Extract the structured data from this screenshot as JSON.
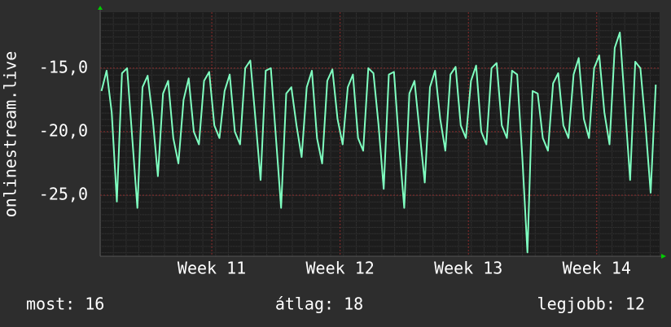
{
  "chart_data": {
    "type": "line",
    "y_label": "onlinestream.live",
    "x": [
      10.14,
      10.18,
      10.22,
      10.26,
      10.3,
      10.34,
      10.38,
      10.42,
      10.46,
      10.5,
      10.54,
      10.58,
      10.62,
      10.66,
      10.7,
      10.74,
      10.78,
      10.82,
      10.86,
      10.9,
      10.94,
      10.98,
      11.02,
      11.06,
      11.1,
      11.14,
      11.18,
      11.22,
      11.26,
      11.3,
      11.34,
      11.38,
      11.42,
      11.46,
      11.5,
      11.54,
      11.58,
      11.62,
      11.66,
      11.7,
      11.74,
      11.78,
      11.82,
      11.86,
      11.9,
      11.94,
      11.98,
      12.02,
      12.06,
      12.1,
      12.14,
      12.18,
      12.22,
      12.26,
      12.3,
      12.34,
      12.38,
      12.42,
      12.46,
      12.5,
      12.54,
      12.58,
      12.62,
      12.66,
      12.7,
      12.74,
      12.78,
      12.82,
      12.86,
      12.9,
      12.94,
      12.98,
      13.02,
      13.06,
      13.1,
      13.14,
      13.18,
      13.22,
      13.26,
      13.3,
      13.34,
      13.38,
      13.42,
      13.46,
      13.5,
      13.54,
      13.58,
      13.62,
      13.66,
      13.7,
      13.74,
      13.78,
      13.82,
      13.86,
      13.9,
      13.94,
      13.98,
      14.02,
      14.06,
      14.1,
      14.14,
      14.18,
      14.22,
      14.26,
      14.3,
      14.34,
      14.38,
      14.42,
      14.46
    ],
    "values": [
      -16.8,
      -15.2,
      -18.5,
      -25.5,
      -15.4,
      -15.0,
      -20.5,
      -26.0,
      -16.5,
      -15.6,
      -19.0,
      -23.5,
      -17.0,
      -16.0,
      -20.5,
      -22.5,
      -17.5,
      -15.8,
      -20.0,
      -21.0,
      -16.0,
      -15.3,
      -19.5,
      -20.5,
      -16.8,
      -15.5,
      -20.0,
      -21.0,
      -15.0,
      -14.4,
      -19.0,
      -23.8,
      -15.2,
      -15.0,
      -20.5,
      -26.0,
      -17.0,
      -16.5,
      -19.5,
      -22.0,
      -16.5,
      -15.2,
      -20.5,
      -22.5,
      -16.0,
      -15.1,
      -19.0,
      -21.0,
      -16.5,
      -15.5,
      -20.5,
      -21.5,
      -15.0,
      -15.4,
      -19.5,
      -24.5,
      -15.5,
      -15.3,
      -21.0,
      -26.0,
      -17.0,
      -16.0,
      -20.0,
      -24.0,
      -16.5,
      -15.2,
      -19.0,
      -21.5,
      -15.5,
      -14.9,
      -19.5,
      -20.5,
      -16.0,
      -14.8,
      -20.0,
      -21.0,
      -15.0,
      -14.6,
      -19.5,
      -20.5,
      -15.2,
      -15.5,
      -22.0,
      -29.5,
      -16.8,
      -17.0,
      -20.5,
      -21.5,
      -16.2,
      -15.4,
      -19.5,
      -20.5,
      -15.5,
      -14.2,
      -19.0,
      -20.5,
      -15.0,
      -14.0,
      -18.5,
      -21.0,
      -13.4,
      -12.2,
      -18.0,
      -23.8,
      -14.5,
      -15.0,
      -19.5,
      -24.8,
      -16.3
    ],
    "color": "#7fffc0",
    "xlim": [
      10.13,
      14.49
    ],
    "xticks": [
      {
        "value": 11,
        "label": "Week 11"
      },
      {
        "value": 12,
        "label": "Week 12"
      },
      {
        "value": 13,
        "label": "Week 13"
      },
      {
        "value": 14,
        "label": "Week 14"
      }
    ],
    "ylim": [
      -29.8,
      -10.6
    ],
    "yticks": [
      {
        "value": -15,
        "label": "-15,0"
      },
      {
        "value": -20,
        "label": "-20,0"
      },
      {
        "value": -25,
        "label": "-25,0"
      }
    ],
    "grid": true,
    "stats": [
      "most: 16",
      "átlag: 18",
      "legjobb: 12"
    ]
  }
}
